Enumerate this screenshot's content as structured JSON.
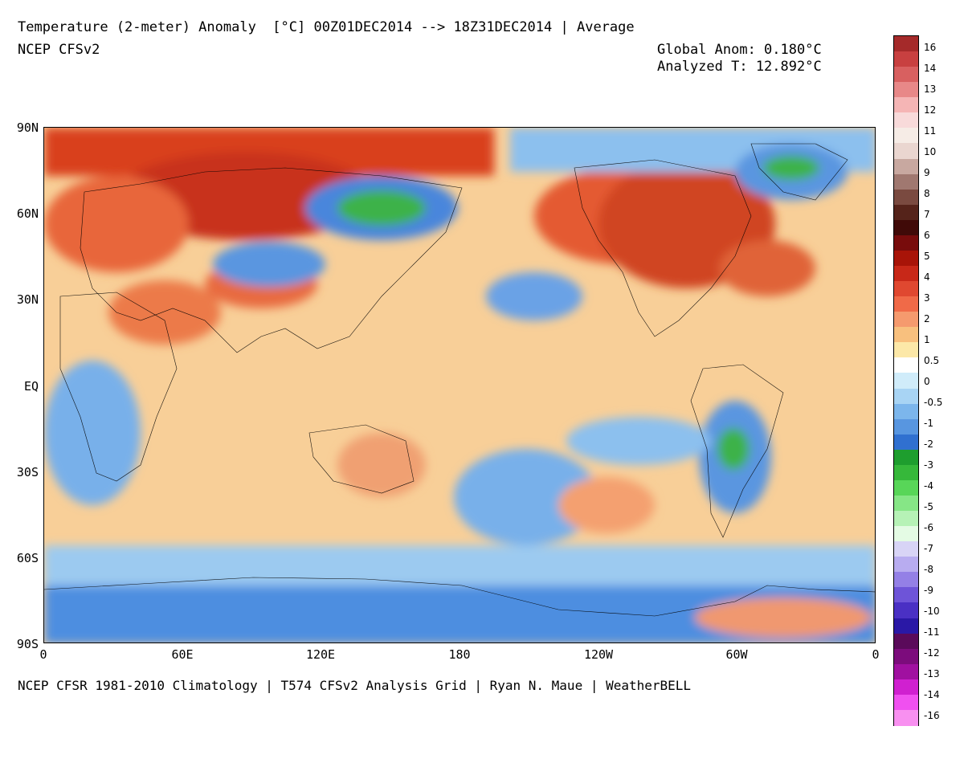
{
  "header": {
    "title": "Temperature (2-meter) Anomaly  [°C] 00Z01DEC2014 --> 18Z31DEC2014 | Average",
    "model": "NCEP CFSv2",
    "global_anom": "Global Anom: 0.180°C",
    "analyzed_t": "Analyzed T: 12.892°C"
  },
  "footer": {
    "credits": "NCEP CFSR 1981-2010 Climatology | T574 CFSv2 Analysis Grid | Ryan N. Maue | WeatherBELL"
  },
  "map": {
    "lat_labels": [
      "90N",
      "60N",
      "30N",
      "EQ",
      "30S",
      "60S",
      "90S"
    ],
    "lon_labels": [
      "0",
      "60E",
      "120E",
      "180",
      "120W",
      "60W",
      "0"
    ]
  },
  "colorbar": {
    "labels": [
      "16",
      "14",
      "13",
      "12",
      "11",
      "10",
      "9",
      "8",
      "7",
      "6",
      "5",
      "4",
      "3",
      "2",
      "1",
      "0.5",
      "0",
      "-0.5",
      "-1",
      "-2",
      "-3",
      "-4",
      "-5",
      "-6",
      "-7",
      "-8",
      "-9",
      "-10",
      "-11",
      "-12",
      "-13",
      "-14",
      "-16"
    ],
    "colors": [
      "#a52a2a",
      "#c84040",
      "#d86060",
      "#e88888",
      "#f5b5b5",
      "#f8dada",
      "#f6ece6",
      "#ead6d0",
      "#c8a8a0",
      "#a07870",
      "#7a4a40",
      "#55231a",
      "#400a08",
      "#780c0c",
      "#a81408",
      "#c82818",
      "#e04830",
      "#f06a48",
      "#f59a6e",
      "#f8c07e",
      "#fce8a8",
      "#ffffff",
      "#d0ecfa",
      "#a8d4f4",
      "#7cb6ec",
      "#5896e0",
      "#3070d0",
      "#1e9e2e",
      "#36b83a",
      "#58d658",
      "#86e686",
      "#b6f2b6",
      "#e4fbe4",
      "#d8d4f6",
      "#b8acf0",
      "#9480e6",
      "#6e54d8",
      "#4a30c4",
      "#2a18a6",
      "#5a0a5a",
      "#7c0c7c",
      "#a010a0",
      "#d020d0",
      "#f050f0",
      "#f890f0"
    ]
  }
}
